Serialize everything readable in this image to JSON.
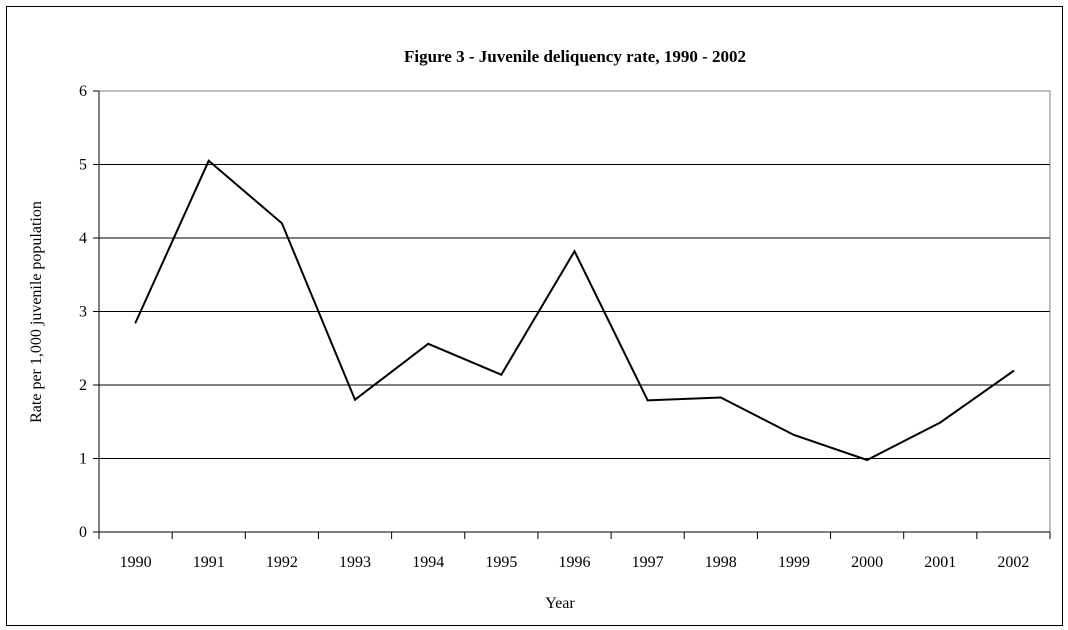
{
  "chart_data": {
    "type": "line",
    "title": "Figure 3 - Juvenile deliquency rate, 1990 - 2002",
    "xlabel": "Year",
    "ylabel": "Rate per 1,000 juvenile population",
    "categories": [
      "1990",
      "1991",
      "1992",
      "1993",
      "1994",
      "1995",
      "1996",
      "1997",
      "1998",
      "1999",
      "2000",
      "2001",
      "2002"
    ],
    "series": [
      {
        "values": [
          2.85,
          5.05,
          4.2,
          1.8,
          2.56,
          2.14,
          3.82,
          1.79,
          1.83,
          1.32,
          0.98,
          1.49,
          2.19
        ]
      }
    ],
    "ylim": [
      0,
      6
    ],
    "yticks": [
      0,
      1,
      2,
      3,
      4,
      5,
      6
    ],
    "grid": true,
    "legend": "none",
    "line_color": "#000000"
  }
}
